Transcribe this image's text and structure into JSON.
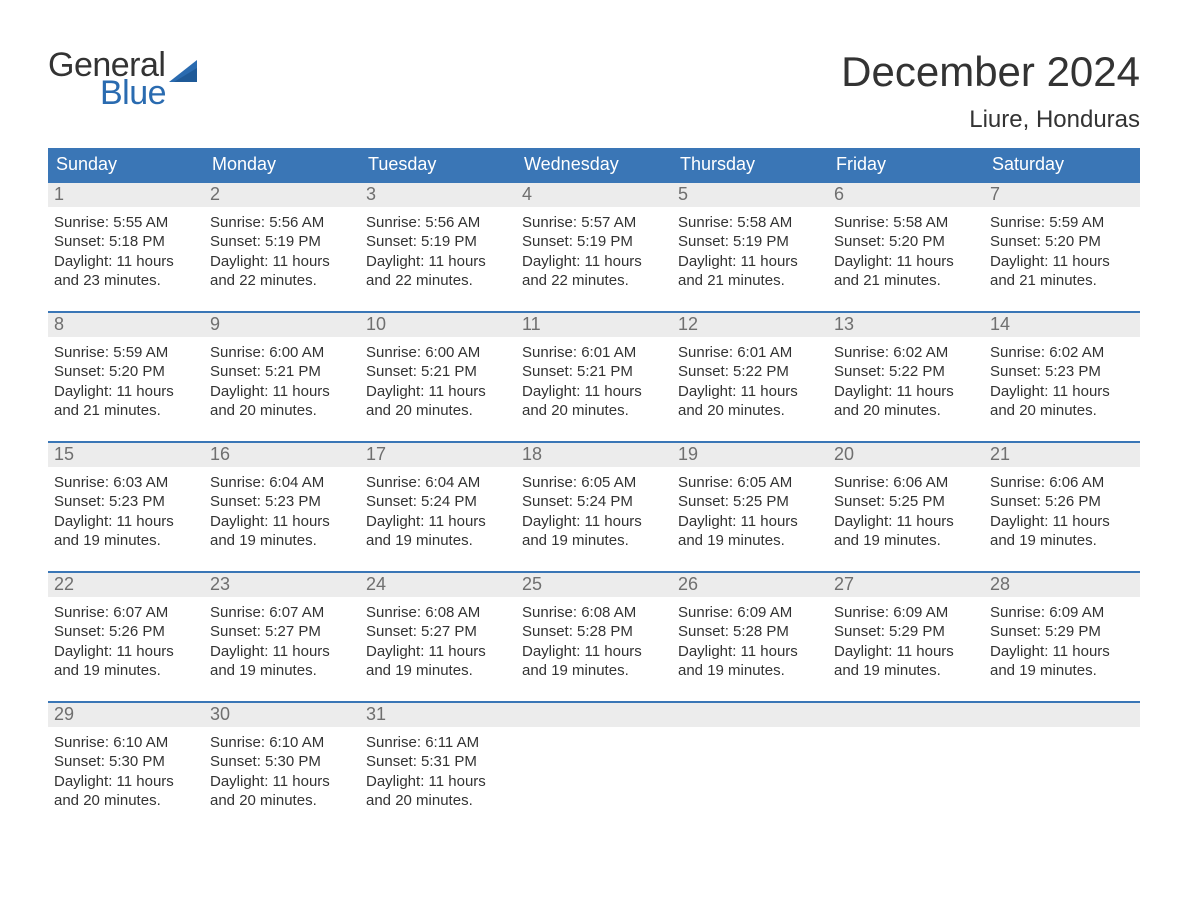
{
  "logo": {
    "top": "General",
    "bottom": "Blue",
    "sail_color": "#2a6bb0"
  },
  "title": "December 2024",
  "location": "Liure, Honduras",
  "colors": {
    "header_bg": "#3a76b6",
    "header_text": "#ffffff",
    "daynum_bg": "#ececec",
    "daynum_text": "#6f6f6f",
    "rule": "#3a76b6",
    "body_text": "#333333",
    "logo_blue": "#2a6bb0"
  },
  "typography": {
    "title_fontsize": 42,
    "location_fontsize": 24,
    "dayheader_fontsize": 18,
    "daynum_fontsize": 18,
    "body_fontsize": 15
  },
  "day_names": [
    "Sunday",
    "Monday",
    "Tuesday",
    "Wednesday",
    "Thursday",
    "Friday",
    "Saturday"
  ],
  "weeks": [
    [
      {
        "n": "1",
        "sr": "Sunrise: 5:55 AM",
        "ss": "Sunset: 5:18 PM",
        "d1": "Daylight: 11 hours",
        "d2": "and 23 minutes."
      },
      {
        "n": "2",
        "sr": "Sunrise: 5:56 AM",
        "ss": "Sunset: 5:19 PM",
        "d1": "Daylight: 11 hours",
        "d2": "and 22 minutes."
      },
      {
        "n": "3",
        "sr": "Sunrise: 5:56 AM",
        "ss": "Sunset: 5:19 PM",
        "d1": "Daylight: 11 hours",
        "d2": "and 22 minutes."
      },
      {
        "n": "4",
        "sr": "Sunrise: 5:57 AM",
        "ss": "Sunset: 5:19 PM",
        "d1": "Daylight: 11 hours",
        "d2": "and 22 minutes."
      },
      {
        "n": "5",
        "sr": "Sunrise: 5:58 AM",
        "ss": "Sunset: 5:19 PM",
        "d1": "Daylight: 11 hours",
        "d2": "and 21 minutes."
      },
      {
        "n": "6",
        "sr": "Sunrise: 5:58 AM",
        "ss": "Sunset: 5:20 PM",
        "d1": "Daylight: 11 hours",
        "d2": "and 21 minutes."
      },
      {
        "n": "7",
        "sr": "Sunrise: 5:59 AM",
        "ss": "Sunset: 5:20 PM",
        "d1": "Daylight: 11 hours",
        "d2": "and 21 minutes."
      }
    ],
    [
      {
        "n": "8",
        "sr": "Sunrise: 5:59 AM",
        "ss": "Sunset: 5:20 PM",
        "d1": "Daylight: 11 hours",
        "d2": "and 21 minutes."
      },
      {
        "n": "9",
        "sr": "Sunrise: 6:00 AM",
        "ss": "Sunset: 5:21 PM",
        "d1": "Daylight: 11 hours",
        "d2": "and 20 minutes."
      },
      {
        "n": "10",
        "sr": "Sunrise: 6:00 AM",
        "ss": "Sunset: 5:21 PM",
        "d1": "Daylight: 11 hours",
        "d2": "and 20 minutes."
      },
      {
        "n": "11",
        "sr": "Sunrise: 6:01 AM",
        "ss": "Sunset: 5:21 PM",
        "d1": "Daylight: 11 hours",
        "d2": "and 20 minutes."
      },
      {
        "n": "12",
        "sr": "Sunrise: 6:01 AM",
        "ss": "Sunset: 5:22 PM",
        "d1": "Daylight: 11 hours",
        "d2": "and 20 minutes."
      },
      {
        "n": "13",
        "sr": "Sunrise: 6:02 AM",
        "ss": "Sunset: 5:22 PM",
        "d1": "Daylight: 11 hours",
        "d2": "and 20 minutes."
      },
      {
        "n": "14",
        "sr": "Sunrise: 6:02 AM",
        "ss": "Sunset: 5:23 PM",
        "d1": "Daylight: 11 hours",
        "d2": "and 20 minutes."
      }
    ],
    [
      {
        "n": "15",
        "sr": "Sunrise: 6:03 AM",
        "ss": "Sunset: 5:23 PM",
        "d1": "Daylight: 11 hours",
        "d2": "and 19 minutes."
      },
      {
        "n": "16",
        "sr": "Sunrise: 6:04 AM",
        "ss": "Sunset: 5:23 PM",
        "d1": "Daylight: 11 hours",
        "d2": "and 19 minutes."
      },
      {
        "n": "17",
        "sr": "Sunrise: 6:04 AM",
        "ss": "Sunset: 5:24 PM",
        "d1": "Daylight: 11 hours",
        "d2": "and 19 minutes."
      },
      {
        "n": "18",
        "sr": "Sunrise: 6:05 AM",
        "ss": "Sunset: 5:24 PM",
        "d1": "Daylight: 11 hours",
        "d2": "and 19 minutes."
      },
      {
        "n": "19",
        "sr": "Sunrise: 6:05 AM",
        "ss": "Sunset: 5:25 PM",
        "d1": "Daylight: 11 hours",
        "d2": "and 19 minutes."
      },
      {
        "n": "20",
        "sr": "Sunrise: 6:06 AM",
        "ss": "Sunset: 5:25 PM",
        "d1": "Daylight: 11 hours",
        "d2": "and 19 minutes."
      },
      {
        "n": "21",
        "sr": "Sunrise: 6:06 AM",
        "ss": "Sunset: 5:26 PM",
        "d1": "Daylight: 11 hours",
        "d2": "and 19 minutes."
      }
    ],
    [
      {
        "n": "22",
        "sr": "Sunrise: 6:07 AM",
        "ss": "Sunset: 5:26 PM",
        "d1": "Daylight: 11 hours",
        "d2": "and 19 minutes."
      },
      {
        "n": "23",
        "sr": "Sunrise: 6:07 AM",
        "ss": "Sunset: 5:27 PM",
        "d1": "Daylight: 11 hours",
        "d2": "and 19 minutes."
      },
      {
        "n": "24",
        "sr": "Sunrise: 6:08 AM",
        "ss": "Sunset: 5:27 PM",
        "d1": "Daylight: 11 hours",
        "d2": "and 19 minutes."
      },
      {
        "n": "25",
        "sr": "Sunrise: 6:08 AM",
        "ss": "Sunset: 5:28 PM",
        "d1": "Daylight: 11 hours",
        "d2": "and 19 minutes."
      },
      {
        "n": "26",
        "sr": "Sunrise: 6:09 AM",
        "ss": "Sunset: 5:28 PM",
        "d1": "Daylight: 11 hours",
        "d2": "and 19 minutes."
      },
      {
        "n": "27",
        "sr": "Sunrise: 6:09 AM",
        "ss": "Sunset: 5:29 PM",
        "d1": "Daylight: 11 hours",
        "d2": "and 19 minutes."
      },
      {
        "n": "28",
        "sr": "Sunrise: 6:09 AM",
        "ss": "Sunset: 5:29 PM",
        "d1": "Daylight: 11 hours",
        "d2": "and 19 minutes."
      }
    ],
    [
      {
        "n": "29",
        "sr": "Sunrise: 6:10 AM",
        "ss": "Sunset: 5:30 PM",
        "d1": "Daylight: 11 hours",
        "d2": "and 20 minutes."
      },
      {
        "n": "30",
        "sr": "Sunrise: 6:10 AM",
        "ss": "Sunset: 5:30 PM",
        "d1": "Daylight: 11 hours",
        "d2": "and 20 minutes."
      },
      {
        "n": "31",
        "sr": "Sunrise: 6:11 AM",
        "ss": "Sunset: 5:31 PM",
        "d1": "Daylight: 11 hours",
        "d2": "and 20 minutes."
      },
      {
        "empty": true
      },
      {
        "empty": true
      },
      {
        "empty": true
      },
      {
        "empty": true
      }
    ]
  ]
}
